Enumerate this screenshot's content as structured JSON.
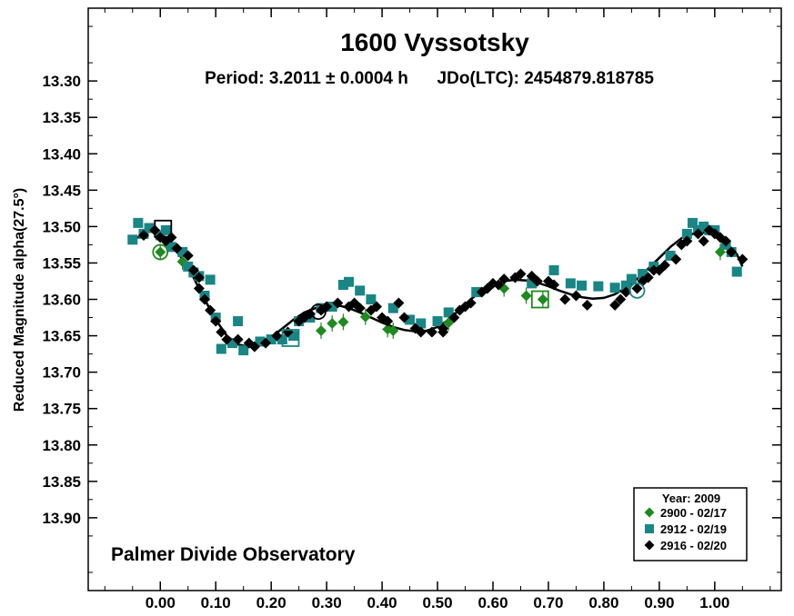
{
  "chart_data": {
    "type": "scatter",
    "title": "1600 Vyssotsky",
    "subtitle": "Period: 3.2011 ± 0.0004 h      JDo(LTC): 2454879.818785",
    "xlabel": "",
    "ylabel": "Reduced Magnitude alpha(27.5°)",
    "xlim": [
      -0.13,
      1.12
    ],
    "ylim": [
      13.2,
      14.0
    ],
    "y_inverted": true,
    "x_ticks": [
      "0.00",
      "0.10",
      "0.20",
      "0.30",
      "0.40",
      "0.50",
      "0.60",
      "0.70",
      "0.80",
      "0.90",
      "1.00"
    ],
    "y_ticks": [
      "13.30",
      "13.35",
      "13.40",
      "13.45",
      "13.50",
      "13.55",
      "13.60",
      "13.65",
      "13.70",
      "13.75",
      "13.80",
      "13.85",
      "13.90"
    ],
    "annotation": "Palmer Divide Observatory",
    "legend": {
      "title": "Year: 2009",
      "position": "bottom-right"
    },
    "series": [
      {
        "name": "2900 - 02/17",
        "marker": "diamond",
        "color": "#1f8a1f",
        "points": [
          [
            0.0,
            13.535
          ],
          [
            0.04,
            13.548
          ],
          [
            0.29,
            13.643
          ],
          [
            0.31,
            13.633
          ],
          [
            0.33,
            13.631
          ],
          [
            0.37,
            13.624
          ],
          [
            0.41,
            13.641
          ],
          [
            0.42,
            13.643
          ],
          [
            0.52,
            13.632
          ],
          [
            0.62,
            13.585
          ],
          [
            0.66,
            13.595
          ],
          [
            0.69,
            13.6
          ],
          [
            1.01,
            13.535
          ]
        ]
      },
      {
        "name": "2912 - 02/19",
        "marker": "square",
        "color": "#1a8585",
        "points": [
          [
            -0.05,
            13.518
          ],
          [
            -0.04,
            13.495
          ],
          [
            -0.03,
            13.51
          ],
          [
            -0.02,
            13.502
          ],
          [
            0.0,
            13.512
          ],
          [
            0.01,
            13.505
          ],
          [
            0.02,
            13.528
          ],
          [
            0.04,
            13.535
          ],
          [
            0.05,
            13.555
          ],
          [
            0.06,
            13.563
          ],
          [
            0.07,
            13.568
          ],
          [
            0.08,
            13.595
          ],
          [
            0.09,
            13.573
          ],
          [
            0.1,
            13.625
          ],
          [
            0.11,
            13.668
          ],
          [
            0.13,
            13.66
          ],
          [
            0.14,
            13.63
          ],
          [
            0.15,
            13.67
          ],
          [
            0.18,
            13.658
          ],
          [
            0.2,
            13.655
          ],
          [
            0.22,
            13.655
          ],
          [
            0.24,
            13.65
          ],
          [
            0.25,
            13.63
          ],
          [
            0.27,
            13.625
          ],
          [
            0.29,
            13.612
          ],
          [
            0.31,
            13.61
          ],
          [
            0.33,
            13.58
          ],
          [
            0.34,
            13.576
          ],
          [
            0.36,
            13.588
          ],
          [
            0.38,
            13.6
          ],
          [
            0.42,
            13.612
          ],
          [
            0.45,
            13.628
          ],
          [
            0.47,
            13.633
          ],
          [
            0.5,
            13.63
          ],
          [
            0.52,
            13.618
          ],
          [
            0.57,
            13.59
          ],
          [
            0.67,
            13.578
          ],
          [
            0.71,
            13.56
          ],
          [
            0.74,
            13.578
          ],
          [
            0.76,
            13.581
          ],
          [
            0.79,
            13.582
          ],
          [
            0.82,
            13.584
          ],
          [
            0.84,
            13.581
          ],
          [
            0.85,
            13.572
          ],
          [
            0.87,
            13.565
          ],
          [
            0.89,
            13.555
          ],
          [
            0.92,
            13.54
          ],
          [
            0.95,
            13.51
          ],
          [
            0.96,
            13.495
          ],
          [
            0.97,
            13.505
          ],
          [
            0.98,
            13.5
          ],
          [
            0.99,
            13.505
          ],
          [
            1.0,
            13.505
          ],
          [
            1.02,
            13.525
          ],
          [
            1.03,
            13.535
          ],
          [
            1.04,
            13.562
          ]
        ]
      },
      {
        "name": "2916 - 02/20",
        "marker": "diamond",
        "color": "#000000",
        "points": [
          [
            -0.03,
            13.512
          ],
          [
            -0.01,
            13.505
          ],
          [
            0.0,
            13.515
          ],
          [
            0.01,
            13.52
          ],
          [
            0.02,
            13.515
          ],
          [
            0.03,
            13.53
          ],
          [
            0.05,
            13.54
          ],
          [
            0.06,
            13.56
          ],
          [
            0.07,
            13.57
          ],
          [
            0.07,
            13.585
          ],
          [
            0.08,
            13.6
          ],
          [
            0.09,
            13.615
          ],
          [
            0.1,
            13.63
          ],
          [
            0.11,
            13.645
          ],
          [
            0.12,
            13.655
          ],
          [
            0.14,
            13.655
          ],
          [
            0.16,
            13.66
          ],
          [
            0.17,
            13.665
          ],
          [
            0.19,
            13.66
          ],
          [
            0.21,
            13.65
          ],
          [
            0.23,
            13.645
          ],
          [
            0.25,
            13.63
          ],
          [
            0.26,
            13.625
          ],
          [
            0.27,
            13.62
          ],
          [
            0.29,
            13.615
          ],
          [
            0.3,
            13.61
          ],
          [
            0.32,
            13.605
          ],
          [
            0.34,
            13.61
          ],
          [
            0.35,
            13.605
          ],
          [
            0.36,
            13.612
          ],
          [
            0.38,
            13.615
          ],
          [
            0.39,
            13.61
          ],
          [
            0.4,
            13.625
          ],
          [
            0.41,
            13.63
          ],
          [
            0.43,
            13.605
          ],
          [
            0.44,
            13.625
          ],
          [
            0.46,
            13.64
          ],
          [
            0.47,
            13.645
          ],
          [
            0.49,
            13.645
          ],
          [
            0.51,
            13.64
          ],
          [
            0.51,
            13.645
          ],
          [
            0.53,
            13.625
          ],
          [
            0.54,
            13.615
          ],
          [
            0.55,
            13.61
          ],
          [
            0.56,
            13.605
          ],
          [
            0.58,
            13.59
          ],
          [
            0.59,
            13.585
          ],
          [
            0.6,
            13.578
          ],
          [
            0.61,
            13.58
          ],
          [
            0.62,
            13.572
          ],
          [
            0.64,
            13.57
          ],
          [
            0.65,
            13.565
          ],
          [
            0.67,
            13.568
          ],
          [
            0.68,
            13.575
          ],
          [
            0.7,
            13.575
          ],
          [
            0.71,
            13.58
          ],
          [
            0.73,
            13.6
          ],
          [
            0.75,
            13.595
          ],
          [
            0.77,
            13.608
          ],
          [
            0.82,
            13.608
          ],
          [
            0.83,
            13.6
          ],
          [
            0.84,
            13.59
          ],
          [
            0.86,
            13.585
          ],
          [
            0.87,
            13.575
          ],
          [
            0.88,
            13.57
          ],
          [
            0.89,
            13.56
          ],
          [
            0.9,
            13.56
          ],
          [
            0.91,
            13.553
          ],
          [
            0.93,
            13.545
          ],
          [
            0.94,
            13.525
          ],
          [
            0.95,
            13.52
          ],
          [
            0.97,
            13.51
          ],
          [
            0.98,
            13.52
          ],
          [
            0.99,
            13.505
          ],
          [
            1.0,
            13.51
          ],
          [
            1.01,
            13.515
          ],
          [
            1.02,
            13.52
          ],
          [
            1.03,
            13.535
          ],
          [
            1.05,
            13.545
          ]
        ]
      }
    ],
    "fit_curve": {
      "color": "#000000",
      "points": [
        [
          -0.05,
          13.519
        ],
        [
          -0.02,
          13.506
        ],
        [
          0.0,
          13.51
        ],
        [
          0.02,
          13.524
        ],
        [
          0.04,
          13.545
        ],
        [
          0.06,
          13.57
        ],
        [
          0.08,
          13.6
        ],
        [
          0.1,
          13.628
        ],
        [
          0.12,
          13.65
        ],
        [
          0.14,
          13.662
        ],
        [
          0.16,
          13.665
        ],
        [
          0.18,
          13.662
        ],
        [
          0.2,
          13.652
        ],
        [
          0.22,
          13.64
        ],
        [
          0.24,
          13.628
        ],
        [
          0.26,
          13.618
        ],
        [
          0.28,
          13.612
        ],
        [
          0.3,
          13.608
        ],
        [
          0.32,
          13.608
        ],
        [
          0.34,
          13.612
        ],
        [
          0.36,
          13.618
        ],
        [
          0.38,
          13.625
        ],
        [
          0.4,
          13.632
        ],
        [
          0.42,
          13.638
        ],
        [
          0.44,
          13.642
        ],
        [
          0.46,
          13.644
        ],
        [
          0.48,
          13.643
        ],
        [
          0.5,
          13.638
        ],
        [
          0.52,
          13.628
        ],
        [
          0.54,
          13.614
        ],
        [
          0.56,
          13.6
        ],
        [
          0.58,
          13.588
        ],
        [
          0.6,
          13.58
        ],
        [
          0.62,
          13.575
        ],
        [
          0.64,
          13.573
        ],
        [
          0.66,
          13.574
        ],
        [
          0.68,
          13.577
        ],
        [
          0.7,
          13.582
        ],
        [
          0.72,
          13.588
        ],
        [
          0.74,
          13.593
        ],
        [
          0.76,
          13.597
        ],
        [
          0.78,
          13.599
        ],
        [
          0.8,
          13.598
        ],
        [
          0.82,
          13.593
        ],
        [
          0.84,
          13.584
        ],
        [
          0.86,
          13.572
        ],
        [
          0.88,
          13.558
        ],
        [
          0.9,
          13.543
        ],
        [
          0.92,
          13.528
        ],
        [
          0.94,
          13.516
        ],
        [
          0.96,
          13.51
        ],
        [
          0.98,
          13.508
        ],
        [
          1.0,
          13.512
        ],
        [
          1.02,
          13.522
        ],
        [
          1.04,
          13.538
        ],
        [
          1.05,
          13.555
        ]
      ]
    },
    "highlight_markers": [
      {
        "shape": "circle",
        "color": "#1f8a1f",
        "x": 0.0,
        "y": 13.535
      },
      {
        "shape": "square",
        "color": "#000000",
        "x": 0.005,
        "y": 13.503
      },
      {
        "shape": "square",
        "color": "#1a8585",
        "x": 0.235,
        "y": 13.653
      },
      {
        "shape": "circle",
        "color": "#000000",
        "x": 0.285,
        "y": 13.617
      },
      {
        "shape": "square",
        "color": "#1f8a1f",
        "x": 0.685,
        "y": 13.6
      },
      {
        "shape": "circle",
        "color": "#1a8585",
        "x": 0.86,
        "y": 13.588
      }
    ]
  }
}
